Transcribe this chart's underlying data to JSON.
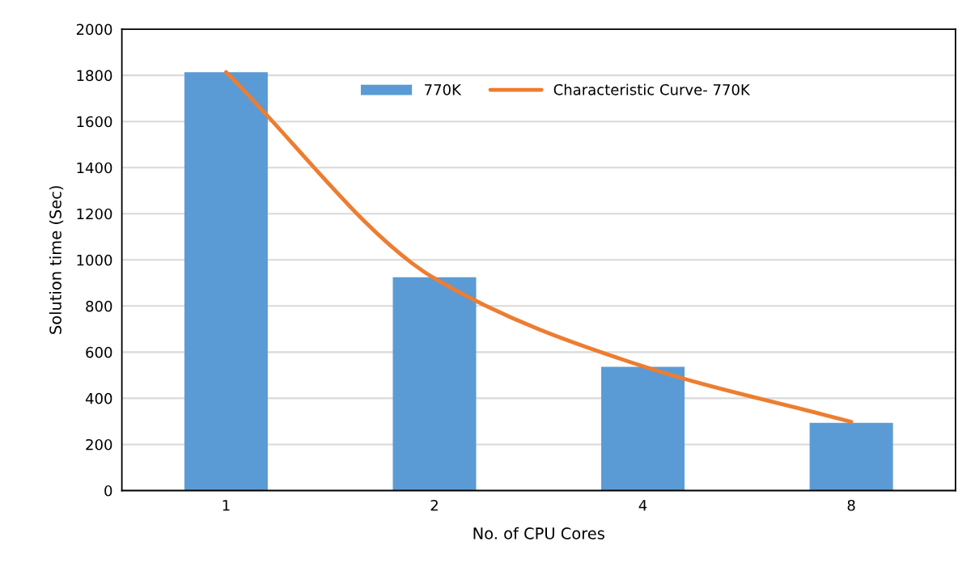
{
  "chart_data": {
    "type": "bar",
    "xlabel": "No. of CPU Cores",
    "ylabel": "Solution time (Sec)",
    "categories": [
      "1",
      "2",
      "4",
      "8"
    ],
    "series": [
      {
        "name": "770K",
        "color": "#5b9bd5",
        "values": [
          1814,
          925,
          536,
          294
        ]
      },
      {
        "name": "Characteristic Curve- 770K",
        "type": "line",
        "color": "#ed7d31",
        "values": [
          1814,
          920,
          539,
          298
        ]
      }
    ],
    "ylim": [
      0,
      2000
    ],
    "yticks": [
      0,
      200,
      400,
      600,
      800,
      1000,
      1200,
      1400,
      1600,
      1800,
      2000
    ],
    "grid": "y",
    "legend": "top",
    "marker": "none",
    "line_style": "solid"
  }
}
